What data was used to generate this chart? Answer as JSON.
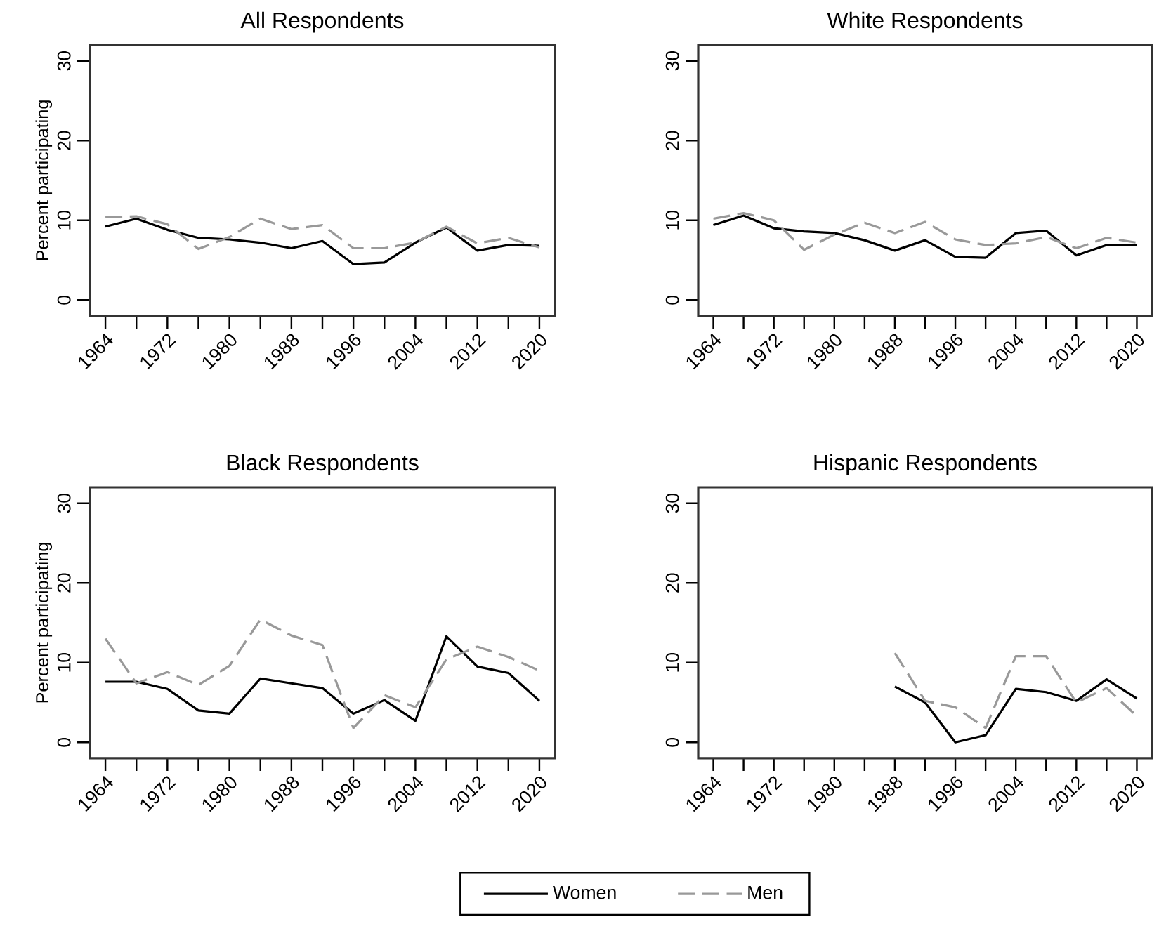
{
  "chart_data": [
    {
      "type": "line",
      "title": "All Respondents",
      "ylabel": "Percent participating",
      "x": [
        1964,
        1968,
        1972,
        1976,
        1980,
        1984,
        1988,
        1992,
        1996,
        2000,
        2004,
        2008,
        2012,
        2016,
        2020
      ],
      "series": [
        {
          "color": "#000000",
          "line_style": "solid",
          "values": [
            9.2,
            10.2,
            8.8,
            7.8,
            7.6,
            7.2,
            6.5,
            7.4,
            4.5,
            4.7,
            7.2,
            9.1,
            6.2,
            6.9,
            6.8
          ]
        },
        {
          "color": "#999999",
          "line_style": "dashed",
          "values": [
            10.4,
            10.5,
            9.5,
            6.4,
            7.9,
            10.2,
            8.9,
            9.4,
            6.5,
            6.5,
            7.2,
            9.2,
            7.1,
            7.8,
            6.6
          ]
        }
      ],
      "xlim": [
        1962,
        2022
      ],
      "ylim": [
        -2,
        32
      ],
      "xticks": [
        1964,
        {
          "value": 1968,
          "label": null
        },
        1972,
        {
          "value": 1976,
          "label": null
        },
        1980,
        {
          "value": 1984,
          "label": null
        },
        1988,
        {
          "value": 1992,
          "label": null
        },
        1996,
        {
          "value": 2000,
          "label": null
        },
        2004,
        {
          "value": 2008,
          "label": null
        },
        2012,
        {
          "value": 2016,
          "label": null
        },
        2020
      ],
      "yticks": [
        0,
        10,
        20,
        30
      ],
      "grid": false
    },
    {
      "type": "line",
      "title": "White Respondents",
      "x": [
        1964,
        1968,
        1972,
        1976,
        1980,
        1984,
        1988,
        1992,
        1996,
        2000,
        2004,
        2008,
        2012,
        2016,
        2020
      ],
      "series": [
        {
          "color": "#000000",
          "line_style": "solid",
          "values": [
            9.4,
            10.6,
            9.0,
            8.6,
            8.4,
            7.5,
            6.2,
            7.5,
            5.4,
            5.3,
            8.4,
            8.7,
            5.6,
            6.9,
            6.9
          ]
        },
        {
          "color": "#999999",
          "line_style": "dashed",
          "values": [
            10.2,
            10.9,
            10.0,
            6.3,
            8.2,
            9.7,
            8.4,
            9.8,
            7.6,
            6.9,
            7.1,
            7.9,
            6.5,
            7.8,
            7.2
          ]
        }
      ],
      "xlim": [
        1962,
        2022
      ],
      "ylim": [
        -2,
        32
      ],
      "xticks": [
        1964,
        {
          "value": 1968,
          "label": null
        },
        1972,
        {
          "value": 1976,
          "label": null
        },
        1980,
        {
          "value": 1984,
          "label": null
        },
        1988,
        {
          "value": 1992,
          "label": null
        },
        1996,
        {
          "value": 2000,
          "label": null
        },
        2004,
        {
          "value": 2008,
          "label": null
        },
        2012,
        {
          "value": 2016,
          "label": null
        },
        2020
      ],
      "yticks": [
        0,
        10,
        20,
        30
      ],
      "grid": false
    },
    {
      "type": "line",
      "title": "Black Respondents",
      "ylabel": "Percent participating",
      "x": [
        1964,
        1968,
        1972,
        1976,
        1980,
        1984,
        1988,
        1992,
        1996,
        2000,
        2004,
        2008,
        2012,
        2016,
        2020
      ],
      "series": [
        {
          "name": "Women",
          "color": "#000000",
          "line_style": "solid",
          "values": [
            7.6,
            7.6,
            6.7,
            4.0,
            3.6,
            8.0,
            7.4,
            6.8,
            3.6,
            5.3,
            2.7,
            13.3,
            9.5,
            8.7,
            5.2
          ]
        },
        {
          "name": "Men",
          "color": "#999999",
          "line_style": "dashed",
          "values": [
            13.0,
            7.4,
            8.8,
            7.2,
            9.6,
            15.4,
            13.4,
            12.2,
            1.8,
            5.9,
            4.4,
            10.4,
            12.0,
            10.7,
            9.0
          ]
        }
      ],
      "xlim": [
        1962,
        2022
      ],
      "ylim": [
        -2,
        32
      ],
      "xticks": [
        1964,
        {
          "value": 1968,
          "label": null
        },
        1972,
        {
          "value": 1976,
          "label": null
        },
        1980,
        {
          "value": 1984,
          "label": null
        },
        1988,
        {
          "value": 1992,
          "label": null
        },
        1996,
        {
          "value": 2000,
          "label": null
        },
        2004,
        {
          "value": 2008,
          "label": null
        },
        2012,
        {
          "value": 2016,
          "label": null
        },
        2020
      ],
      "yticks": [
        0,
        10,
        20,
        30
      ],
      "grid": false,
      "legend": "bottom"
    },
    {
      "type": "line",
      "title": "Hispanic Respondents",
      "x": [
        1988,
        1992,
        1996,
        2000,
        2004,
        2008,
        2012,
        2016,
        2020
      ],
      "series": [
        {
          "color": "#000000",
          "line_style": "solid",
          "values": [
            7.0,
            5.0,
            0.0,
            0.9,
            6.7,
            6.3,
            5.2,
            7.9,
            5.5
          ]
        },
        {
          "color": "#999999",
          "line_style": "dashed",
          "values": [
            11.2,
            5.2,
            4.4,
            1.8,
            10.8,
            10.8,
            5.0,
            6.8,
            3.3
          ]
        }
      ],
      "xlim": [
        1962,
        2022
      ],
      "ylim": [
        -2,
        32
      ],
      "xticks": [
        1964,
        {
          "value": 1968,
          "label": null
        },
        1972,
        {
          "value": 1976,
          "label": null
        },
        1980,
        {
          "value": 1984,
          "label": null
        },
        1988,
        {
          "value": 1992,
          "label": null
        },
        1996,
        {
          "value": 2000,
          "label": null
        },
        2004,
        {
          "value": 2008,
          "label": null
        },
        2012,
        {
          "value": 2016,
          "label": null
        },
        2020
      ],
      "yticks": [
        0,
        10,
        20,
        30
      ],
      "grid": false
    }
  ]
}
